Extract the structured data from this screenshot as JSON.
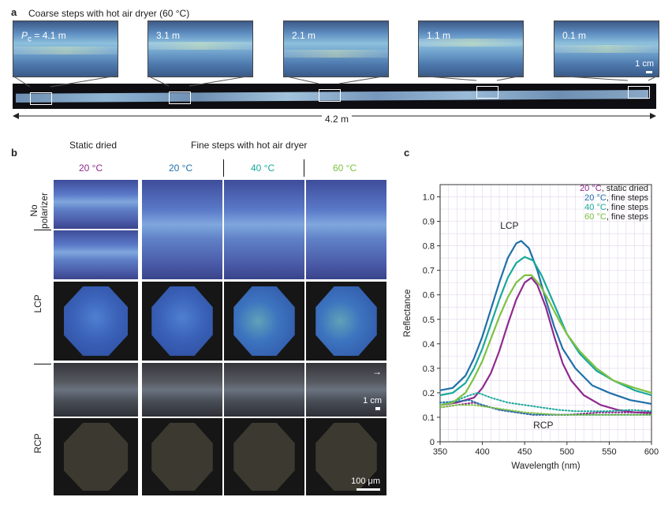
{
  "panel_a": {
    "letter": "a",
    "title": "Coarse steps with hot air dryer (60 °C)",
    "insets": [
      {
        "label_prefix": "P",
        "label_sub": "c",
        "label_suffix": " = 4.1 m"
      },
      {
        "label": "3.1 m"
      },
      {
        "label": "2.1 m"
      },
      {
        "label": "1.1 m"
      },
      {
        "label": "0.1 m"
      }
    ],
    "scale": "1 cm",
    "length": "4.2 m"
  },
  "panel_b": {
    "letter": "b",
    "static_header": "Static dried",
    "fine_header": "Fine steps with hot air dryer",
    "temps": [
      {
        "label": "20 °C",
        "color": "#8e2a8e"
      },
      {
        "label": "20 °C",
        "color": "#1f6fa8"
      },
      {
        "label": "40 °C",
        "color": "#1aa89a"
      },
      {
        "label": "60 °C",
        "color": "#7cc242"
      }
    ],
    "row_labels": {
      "nopol": "No\npolarizer",
      "lcp": "LCP",
      "rcp": "RCP"
    },
    "scale_cm": "1 cm",
    "scale_um": "100 μm"
  },
  "panel_c": {
    "letter": "c",
    "chart_data": {
      "type": "line",
      "xlabel": "Wavelength (nm)",
      "ylabel": "Reflectance",
      "xlim": [
        350,
        600
      ],
      "ylim": [
        0,
        1.05
      ],
      "xticks": [
        350,
        400,
        450,
        500,
        550,
        600
      ],
      "yticks": [
        0,
        0.1,
        0.2,
        0.3,
        0.4,
        0.5,
        0.6,
        0.7,
        0.8,
        0.9,
        1.0
      ],
      "grid": true,
      "legend": "top-right",
      "annotations": [
        "LCP",
        "RCP"
      ],
      "series": [
        {
          "name": "20 °C, static dried",
          "color": "#8e2a8e",
          "label_temp": "20 °C",
          "label_rest": ", static dried",
          "lcp": [
            [
              350,
              0.15
            ],
            [
              370,
              0.16
            ],
            [
              390,
              0.18
            ],
            [
              400,
              0.22
            ],
            [
              410,
              0.28
            ],
            [
              420,
              0.37
            ],
            [
              430,
              0.48
            ],
            [
              440,
              0.58
            ],
            [
              450,
              0.65
            ],
            [
              458,
              0.67
            ],
            [
              465,
              0.64
            ],
            [
              475,
              0.55
            ],
            [
              485,
              0.43
            ],
            [
              495,
              0.32
            ],
            [
              505,
              0.25
            ],
            [
              520,
              0.19
            ],
            [
              540,
              0.15
            ],
            [
              560,
              0.13
            ],
            [
              580,
              0.12
            ],
            [
              600,
              0.12
            ]
          ],
          "rcp": [
            [
              350,
              0.14
            ],
            [
              370,
              0.15
            ],
            [
              390,
              0.16
            ],
            [
              400,
              0.15
            ],
            [
              420,
              0.13
            ],
            [
              440,
              0.12
            ],
            [
              460,
              0.11
            ],
            [
              480,
              0.11
            ],
            [
              500,
              0.11
            ],
            [
              520,
              0.115
            ],
            [
              540,
              0.12
            ],
            [
              560,
              0.12
            ],
            [
              580,
              0.12
            ],
            [
              600,
              0.115
            ]
          ]
        },
        {
          "name": "20 °C, fine steps",
          "color": "#1f6fa8",
          "label_temp": "20 °C",
          "label_rest": ", fine steps",
          "lcp": [
            [
              350,
              0.21
            ],
            [
              365,
              0.22
            ],
            [
              380,
              0.27
            ],
            [
              390,
              0.34
            ],
            [
              400,
              0.43
            ],
            [
              410,
              0.54
            ],
            [
              420,
              0.65
            ],
            [
              430,
              0.75
            ],
            [
              440,
              0.81
            ],
            [
              446,
              0.82
            ],
            [
              455,
              0.79
            ],
            [
              465,
              0.7
            ],
            [
              475,
              0.58
            ],
            [
              485,
              0.47
            ],
            [
              495,
              0.38
            ],
            [
              510,
              0.3
            ],
            [
              530,
              0.23
            ],
            [
              550,
              0.2
            ],
            [
              575,
              0.17
            ],
            [
              600,
              0.155
            ]
          ],
          "rcp": [
            [
              350,
              0.16
            ],
            [
              370,
              0.165
            ],
            [
              385,
              0.17
            ],
            [
              400,
              0.15
            ],
            [
              420,
              0.13
            ],
            [
              440,
              0.12
            ],
            [
              460,
              0.11
            ],
            [
              480,
              0.11
            ],
            [
              500,
              0.11
            ],
            [
              520,
              0.11
            ],
            [
              540,
              0.11
            ],
            [
              560,
              0.11
            ],
            [
              580,
              0.11
            ],
            [
              600,
              0.11
            ]
          ]
        },
        {
          "name": "40 °C, fine steps",
          "color": "#1aa89a",
          "label_temp": "40 °C",
          "label_rest": ", fine steps",
          "lcp": [
            [
              350,
              0.19
            ],
            [
              365,
              0.2
            ],
            [
              380,
              0.24
            ],
            [
              390,
              0.3
            ],
            [
              400,
              0.38
            ],
            [
              410,
              0.48
            ],
            [
              420,
              0.58
            ],
            [
              430,
              0.67
            ],
            [
              440,
              0.73
            ],
            [
              450,
              0.755
            ],
            [
              460,
              0.74
            ],
            [
              470,
              0.68
            ],
            [
              480,
              0.6
            ],
            [
              490,
              0.52
            ],
            [
              500,
              0.44
            ],
            [
              515,
              0.36
            ],
            [
              535,
              0.29
            ],
            [
              555,
              0.25
            ],
            [
              580,
              0.21
            ],
            [
              600,
              0.19
            ]
          ],
          "rcp": [
            [
              350,
              0.15
            ],
            [
              370,
              0.17
            ],
            [
              385,
              0.19
            ],
            [
              395,
              0.2
            ],
            [
              410,
              0.18
            ],
            [
              430,
              0.16
            ],
            [
              450,
              0.15
            ],
            [
              470,
              0.14
            ],
            [
              490,
              0.13
            ],
            [
              510,
              0.125
            ],
            [
              530,
              0.125
            ],
            [
              550,
              0.125
            ],
            [
              575,
              0.13
            ],
            [
              600,
              0.125
            ]
          ]
        },
        {
          "name": "60 °C, fine steps",
          "color": "#7cc242",
          "label_temp": "60 °C",
          "label_rest": ", fine steps",
          "lcp": [
            [
              350,
              0.15
            ],
            [
              365,
              0.16
            ],
            [
              380,
              0.2
            ],
            [
              390,
              0.26
            ],
            [
              400,
              0.33
            ],
            [
              410,
              0.42
            ],
            [
              420,
              0.51
            ],
            [
              430,
              0.59
            ],
            [
              440,
              0.65
            ],
            [
              450,
              0.68
            ],
            [
              458,
              0.68
            ],
            [
              468,
              0.64
            ],
            [
              478,
              0.58
            ],
            [
              490,
              0.5
            ],
            [
              500,
              0.44
            ],
            [
              515,
              0.37
            ],
            [
              535,
              0.3
            ],
            [
              555,
              0.25
            ],
            [
              580,
              0.22
            ],
            [
              600,
              0.2
            ]
          ],
          "rcp": [
            [
              350,
              0.14
            ],
            [
              370,
              0.15
            ],
            [
              390,
              0.15
            ],
            [
              410,
              0.14
            ],
            [
              430,
              0.13
            ],
            [
              450,
              0.12
            ],
            [
              470,
              0.115
            ],
            [
              490,
              0.11
            ],
            [
              510,
              0.11
            ],
            [
              530,
              0.11
            ],
            [
              550,
              0.11
            ],
            [
              575,
              0.11
            ],
            [
              600,
              0.11
            ]
          ]
        }
      ]
    }
  }
}
